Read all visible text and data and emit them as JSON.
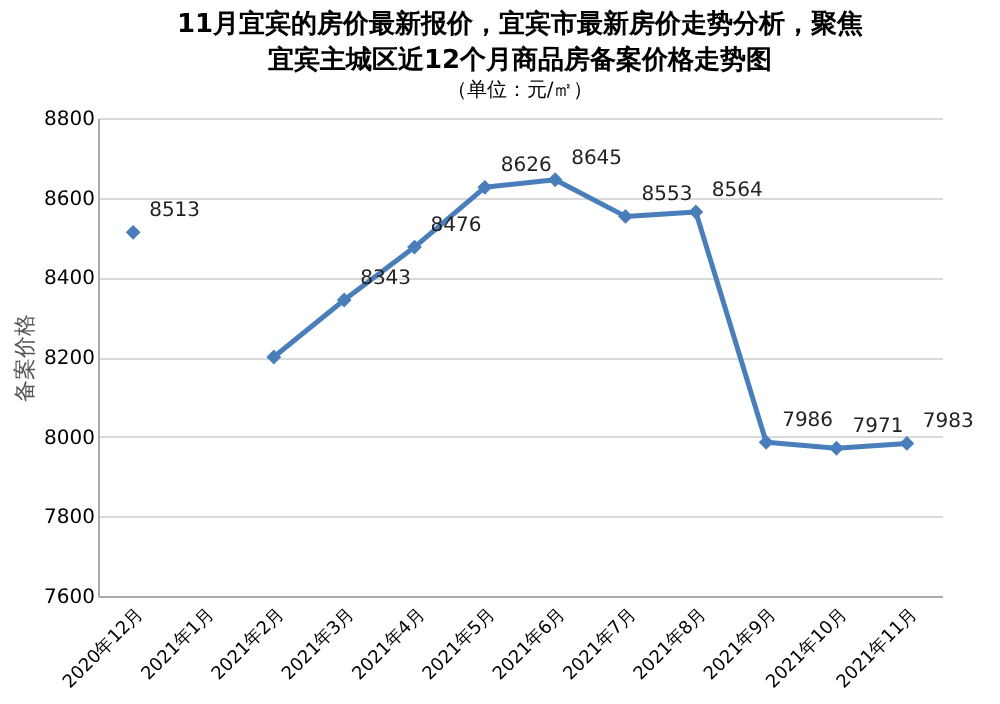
{
  "chart_data": {
    "type": "line",
    "title": "宜宾主城区近12个月商品房备案价格走势图",
    "subtitle": "（单位：元/㎡）",
    "ylabel": "备案价格",
    "annotations": [
      "11月宜宾的房价最新报价，宜宾市最新房价走势分析，聚焦"
    ],
    "categories": [
      "2020年12月",
      "2021年1月",
      "2021年2月",
      "2021年3月",
      "2021年4月",
      "2021年5月",
      "2021年6月",
      "2021年7月",
      "2021年8月",
      "2021年9月",
      "2021年10月",
      "2021年11月"
    ],
    "series": [
      {
        "color": "#4a7ebb",
        "values": [
          8513,
          null,
          8200,
          8343,
          8476,
          8626,
          8645,
          8553,
          8564,
          7986,
          7971,
          7983
        ],
        "value_labels": [
          "8513",
          null,
          null,
          "8343",
          "8476",
          "8626",
          "8645",
          "8553",
          "8564",
          "7986",
          "7971",
          "7983"
        ]
      }
    ],
    "ylim": [
      7600,
      8800
    ],
    "yticks": [
      7600,
      7800,
      8000,
      8200,
      8400,
      8600,
      8800
    ],
    "grid": "y",
    "marker": "diamond",
    "line_style": "solid"
  }
}
